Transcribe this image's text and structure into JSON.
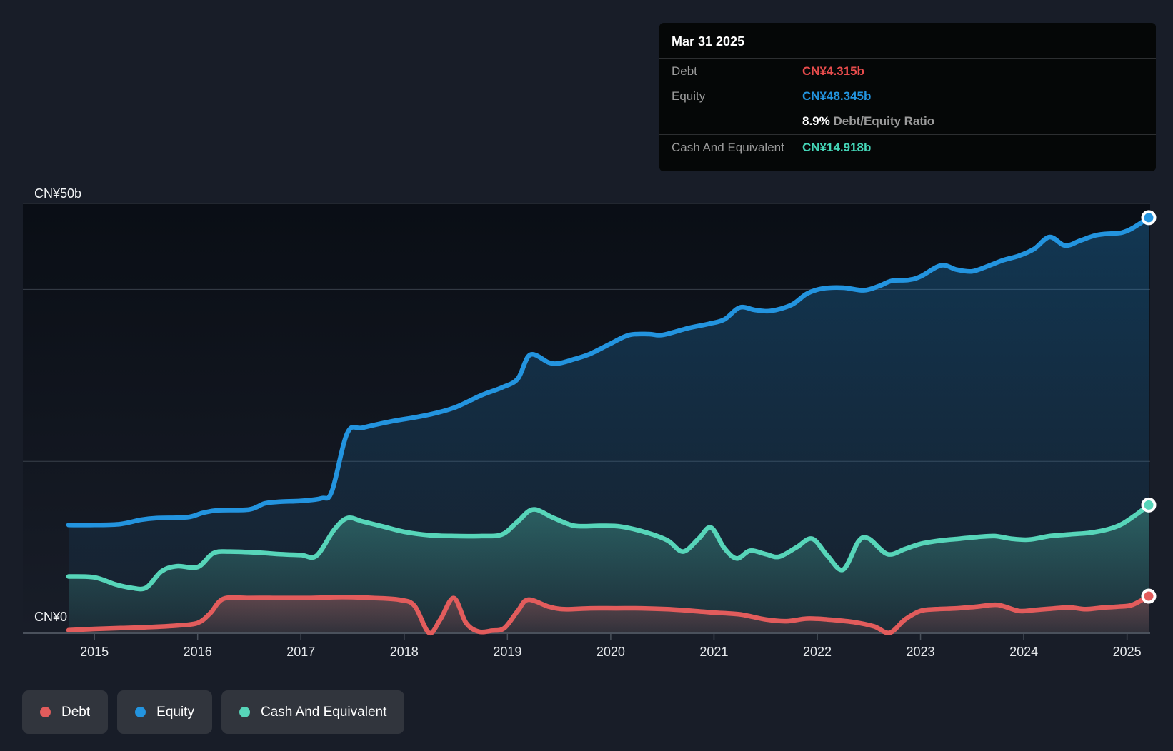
{
  "page": {
    "background": "#181d28"
  },
  "tooltip": {
    "date": "Mar 31 2025",
    "debt_label": "Debt",
    "debt_value": "CN¥4.315b",
    "debt_color": "#e84c4c",
    "equity_label": "Equity",
    "equity_value": "CN¥48.345b",
    "equity_color": "#2394df",
    "ratio_value": "8.9%",
    "ratio_label": "Debt/Equity Ratio",
    "cash_label": "Cash And Equivalent",
    "cash_value": "CN¥14.918b",
    "cash_color": "#45d6b8"
  },
  "legend": {
    "items": [
      {
        "label": "Debt",
        "color": "#e25c5c"
      },
      {
        "label": "Equity",
        "color": "#2394df"
      },
      {
        "label": "Cash And Equivalent",
        "color": "#57d5b9"
      }
    ]
  },
  "chart_data": {
    "type": "area",
    "title": "",
    "x_axis": {
      "tick_labels": [
        "2015",
        "2016",
        "2017",
        "2018",
        "2019",
        "2020",
        "2021",
        "2022",
        "2023",
        "2024",
        "2025"
      ],
      "range": [
        2014.75,
        2025.21
      ]
    },
    "y_axis": {
      "top_label": "CN¥50b",
      "bottom_label": "CN¥0",
      "min": 0,
      "max": 50,
      "unit": "CN¥ billions",
      "gridline_values": [
        50,
        40,
        20
      ]
    },
    "series": [
      {
        "name": "Equity",
        "color": "#2394df",
        "points": [
          [
            2014.75,
            12.6
          ],
          [
            2015.0,
            12.6
          ],
          [
            2015.25,
            12.7
          ],
          [
            2015.45,
            13.2
          ],
          [
            2015.6,
            13.4
          ],
          [
            2015.9,
            13.5
          ],
          [
            2016.05,
            14.0
          ],
          [
            2016.2,
            14.3
          ],
          [
            2016.5,
            14.4
          ],
          [
            2016.65,
            15.1
          ],
          [
            2016.8,
            15.3
          ],
          [
            2017.0,
            15.4
          ],
          [
            2017.2,
            15.7
          ],
          [
            2017.3,
            16.5
          ],
          [
            2017.45,
            23.3
          ],
          [
            2017.6,
            23.9
          ],
          [
            2017.9,
            24.7
          ],
          [
            2018.1,
            25.1
          ],
          [
            2018.3,
            25.6
          ],
          [
            2018.5,
            26.3
          ],
          [
            2018.75,
            27.7
          ],
          [
            2018.95,
            28.6
          ],
          [
            2019.1,
            29.6
          ],
          [
            2019.22,
            32.4
          ],
          [
            2019.4,
            31.5
          ],
          [
            2019.5,
            31.4
          ],
          [
            2019.65,
            31.9
          ],
          [
            2019.8,
            32.5
          ],
          [
            2020.0,
            33.7
          ],
          [
            2020.18,
            34.7
          ],
          [
            2020.37,
            34.8
          ],
          [
            2020.5,
            34.7
          ],
          [
            2020.75,
            35.5
          ],
          [
            2020.95,
            36.0
          ],
          [
            2021.1,
            36.5
          ],
          [
            2021.25,
            37.9
          ],
          [
            2021.4,
            37.6
          ],
          [
            2021.55,
            37.5
          ],
          [
            2021.75,
            38.2
          ],
          [
            2021.9,
            39.5
          ],
          [
            2022.05,
            40.1
          ],
          [
            2022.25,
            40.2
          ],
          [
            2022.45,
            39.9
          ],
          [
            2022.6,
            40.4
          ],
          [
            2022.72,
            41.0
          ],
          [
            2022.88,
            41.1
          ],
          [
            2023.0,
            41.5
          ],
          [
            2023.2,
            42.8
          ],
          [
            2023.35,
            42.3
          ],
          [
            2023.5,
            42.1
          ],
          [
            2023.65,
            42.7
          ],
          [
            2023.8,
            43.4
          ],
          [
            2023.95,
            43.9
          ],
          [
            2024.1,
            44.7
          ],
          [
            2024.25,
            46.1
          ],
          [
            2024.4,
            45.1
          ],
          [
            2024.55,
            45.7
          ],
          [
            2024.7,
            46.3
          ],
          [
            2024.85,
            46.5
          ],
          [
            2024.95,
            46.6
          ],
          [
            2025.05,
            47.1
          ],
          [
            2025.21,
            48.345
          ]
        ]
      },
      {
        "name": "Cash And Equivalent",
        "color": "#57d5b9",
        "points": [
          [
            2014.75,
            6.6
          ],
          [
            2015.0,
            6.5
          ],
          [
            2015.2,
            5.7
          ],
          [
            2015.35,
            5.3
          ],
          [
            2015.5,
            5.3
          ],
          [
            2015.65,
            7.2
          ],
          [
            2015.8,
            7.8
          ],
          [
            2016.0,
            7.7
          ],
          [
            2016.15,
            9.3
          ],
          [
            2016.3,
            9.5
          ],
          [
            2016.55,
            9.4
          ],
          [
            2016.8,
            9.2
          ],
          [
            2017.0,
            9.1
          ],
          [
            2017.15,
            9.0
          ],
          [
            2017.32,
            12.0
          ],
          [
            2017.45,
            13.4
          ],
          [
            2017.6,
            13.0
          ],
          [
            2017.8,
            12.4
          ],
          [
            2018.0,
            11.8
          ],
          [
            2018.25,
            11.4
          ],
          [
            2018.5,
            11.3
          ],
          [
            2018.75,
            11.3
          ],
          [
            2018.95,
            11.5
          ],
          [
            2019.1,
            13.0
          ],
          [
            2019.25,
            14.4
          ],
          [
            2019.45,
            13.4
          ],
          [
            2019.65,
            12.5
          ],
          [
            2019.9,
            12.5
          ],
          [
            2020.1,
            12.4
          ],
          [
            2020.35,
            11.7
          ],
          [
            2020.55,
            10.8
          ],
          [
            2020.7,
            9.5
          ],
          [
            2020.85,
            11.0
          ],
          [
            2020.97,
            12.3
          ],
          [
            2021.1,
            9.9
          ],
          [
            2021.22,
            8.7
          ],
          [
            2021.35,
            9.6
          ],
          [
            2021.5,
            9.2
          ],
          [
            2021.63,
            8.9
          ],
          [
            2021.8,
            10.0
          ],
          [
            2021.95,
            11.0
          ],
          [
            2022.1,
            9.0
          ],
          [
            2022.25,
            7.4
          ],
          [
            2022.4,
            10.7
          ],
          [
            2022.5,
            11.0
          ],
          [
            2022.68,
            9.2
          ],
          [
            2022.85,
            9.8
          ],
          [
            2023.0,
            10.4
          ],
          [
            2023.2,
            10.8
          ],
          [
            2023.38,
            11.0
          ],
          [
            2023.55,
            11.2
          ],
          [
            2023.72,
            11.3
          ],
          [
            2023.88,
            11.0
          ],
          [
            2024.05,
            10.9
          ],
          [
            2024.25,
            11.3
          ],
          [
            2024.45,
            11.5
          ],
          [
            2024.65,
            11.7
          ],
          [
            2024.82,
            12.1
          ],
          [
            2024.95,
            12.7
          ],
          [
            2025.1,
            13.9
          ],
          [
            2025.21,
            14.918
          ]
        ]
      },
      {
        "name": "Debt",
        "color": "#e25c5c",
        "points": [
          [
            2014.75,
            0.35
          ],
          [
            2015.0,
            0.5
          ],
          [
            2015.25,
            0.6
          ],
          [
            2015.5,
            0.7
          ],
          [
            2015.8,
            0.9
          ],
          [
            2016.0,
            1.2
          ],
          [
            2016.12,
            2.3
          ],
          [
            2016.25,
            4.0
          ],
          [
            2016.5,
            4.1
          ],
          [
            2016.8,
            4.1
          ],
          [
            2017.1,
            4.1
          ],
          [
            2017.4,
            4.2
          ],
          [
            2017.7,
            4.1
          ],
          [
            2017.95,
            3.9
          ],
          [
            2018.1,
            3.2
          ],
          [
            2018.24,
            0.05
          ],
          [
            2018.35,
            1.6
          ],
          [
            2018.48,
            4.1
          ],
          [
            2018.6,
            1.2
          ],
          [
            2018.72,
            0.2
          ],
          [
            2018.85,
            0.3
          ],
          [
            2018.97,
            0.6
          ],
          [
            2019.1,
            2.6
          ],
          [
            2019.2,
            3.9
          ],
          [
            2019.4,
            3.1
          ],
          [
            2019.55,
            2.8
          ],
          [
            2019.8,
            2.9
          ],
          [
            2020.05,
            2.9
          ],
          [
            2020.3,
            2.9
          ],
          [
            2020.55,
            2.8
          ],
          [
            2020.8,
            2.6
          ],
          [
            2021.0,
            2.4
          ],
          [
            2021.25,
            2.2
          ],
          [
            2021.5,
            1.6
          ],
          [
            2021.7,
            1.4
          ],
          [
            2021.9,
            1.7
          ],
          [
            2022.1,
            1.6
          ],
          [
            2022.35,
            1.3
          ],
          [
            2022.55,
            0.8
          ],
          [
            2022.7,
            0.05
          ],
          [
            2022.85,
            1.6
          ],
          [
            2023.0,
            2.6
          ],
          [
            2023.15,
            2.8
          ],
          [
            2023.35,
            2.9
          ],
          [
            2023.55,
            3.1
          ],
          [
            2023.75,
            3.3
          ],
          [
            2023.95,
            2.6
          ],
          [
            2024.1,
            2.7
          ],
          [
            2024.3,
            2.9
          ],
          [
            2024.45,
            3.0
          ],
          [
            2024.6,
            2.8
          ],
          [
            2024.78,
            3.0
          ],
          [
            2024.92,
            3.1
          ],
          [
            2025.05,
            3.3
          ],
          [
            2025.21,
            4.315
          ]
        ]
      }
    ],
    "end_values": {
      "date": "Mar 31 2025",
      "Equity": 48.345,
      "Debt": 4.315,
      "Cash And Equivalent": 14.918
    }
  }
}
